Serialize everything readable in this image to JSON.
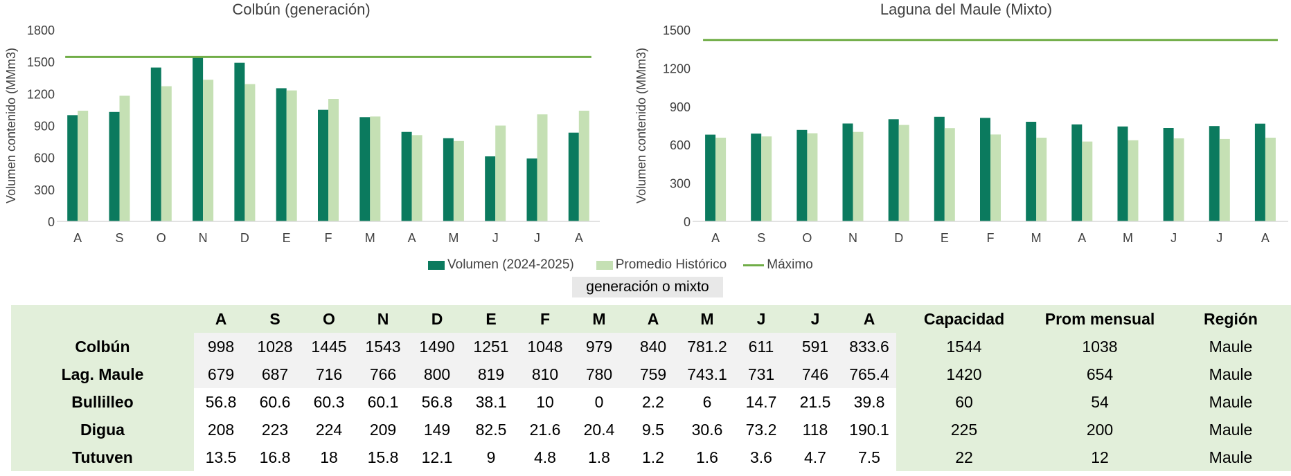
{
  "legend": {
    "volumen": "Volumen (2024-2025)",
    "promedio": "Promedio Histórico",
    "maximo": "Máximo"
  },
  "colors": {
    "volumen": "#0b7a5e",
    "promedio": "#c5e0b4",
    "maximo": "#70ad47"
  },
  "selector_label": "generación o mixto",
  "chart_data": [
    {
      "type": "bar",
      "title": "Colbún (generación)",
      "ylabel": "Volumen contenido (MMm3)",
      "xlabel": "",
      "ylim": [
        0,
        1800
      ],
      "yticks": [
        0,
        300,
        600,
        900,
        1200,
        1500,
        1800
      ],
      "categories": [
        "A",
        "S",
        "O",
        "N",
        "D",
        "E",
        "F",
        "M",
        "A",
        "M",
        "J",
        "J",
        "A"
      ],
      "series": [
        {
          "name": "Volumen (2024-2025)",
          "values": [
            998,
            1028,
            1445,
            1543,
            1490,
            1251,
            1048,
            979,
            840,
            781.2,
            611,
            591,
            833.6
          ]
        },
        {
          "name": "Promedio Histórico",
          "values": [
            1040,
            1180,
            1270,
            1330,
            1290,
            1230,
            1150,
            985,
            810,
            755,
            900,
            1005,
            1040
          ]
        }
      ],
      "max_line": {
        "name": "Máximo",
        "value": 1544
      }
    },
    {
      "type": "bar",
      "title": "Laguna del Maule (Mixto)",
      "ylabel": "Volumen contenido (MMm3)",
      "xlabel": "",
      "ylim": [
        0,
        1500
      ],
      "yticks": [
        0,
        300,
        600,
        900,
        1200,
        1500
      ],
      "categories": [
        "A",
        "S",
        "O",
        "N",
        "D",
        "E",
        "F",
        "M",
        "A",
        "M",
        "J",
        "J",
        "A"
      ],
      "series": [
        {
          "name": "Volumen (2024-2025)",
          "values": [
            679,
            687,
            716,
            766,
            800,
            819,
            810,
            780,
            759,
            743.1,
            731,
            746,
            765.4
          ]
        },
        {
          "name": "Promedio Histórico",
          "values": [
            655,
            665,
            690,
            700,
            755,
            730,
            680,
            655,
            625,
            635,
            650,
            645,
            655
          ]
        }
      ],
      "max_line": {
        "name": "Máximo",
        "value": 1420
      }
    }
  ],
  "table": {
    "months": [
      "A",
      "S",
      "O",
      "N",
      "D",
      "E",
      "F",
      "M",
      "A",
      "M",
      "J",
      "J",
      "A"
    ],
    "headers_extra": [
      "Capacidad",
      "Prom mensual",
      "Región"
    ],
    "rows": [
      {
        "name": "Colbún",
        "values": [
          "998",
          "1028",
          "1445",
          "1543",
          "1490",
          "1251",
          "1048",
          "979",
          "840",
          "781.2",
          "611",
          "591",
          "833.6"
        ],
        "capacidad": "1544",
        "prom": "1038",
        "region": "Maule"
      },
      {
        "name": "Lag. Maule",
        "values": [
          "679",
          "687",
          "716",
          "766",
          "800",
          "819",
          "810",
          "780",
          "759",
          "743.1",
          "731",
          "746",
          "765.4"
        ],
        "capacidad": "1420",
        "prom": "654",
        "region": "Maule"
      },
      {
        "name": "Bullilleo",
        "values": [
          "56.8",
          "60.6",
          "60.3",
          "60.1",
          "56.8",
          "38.1",
          "10",
          "0",
          "2.2",
          "6",
          "14.7",
          "21.5",
          "39.8"
        ],
        "capacidad": "60",
        "prom": "54",
        "region": "Maule"
      },
      {
        "name": "Digua",
        "values": [
          "208",
          "223",
          "224",
          "209",
          "149",
          "82.5",
          "21.6",
          "20.4",
          "9.5",
          "30.6",
          "73.2",
          "118",
          "190.1"
        ],
        "capacidad": "225",
        "prom": "200",
        "region": "Maule"
      },
      {
        "name": "Tutuven",
        "values": [
          "13.5",
          "16.8",
          "18",
          "15.8",
          "12.1",
          "9",
          "4.8",
          "1.8",
          "1.2",
          "1.6",
          "3.6",
          "4.7",
          "7.5"
        ],
        "capacidad": "22",
        "prom": "12",
        "region": "Maule"
      }
    ]
  }
}
